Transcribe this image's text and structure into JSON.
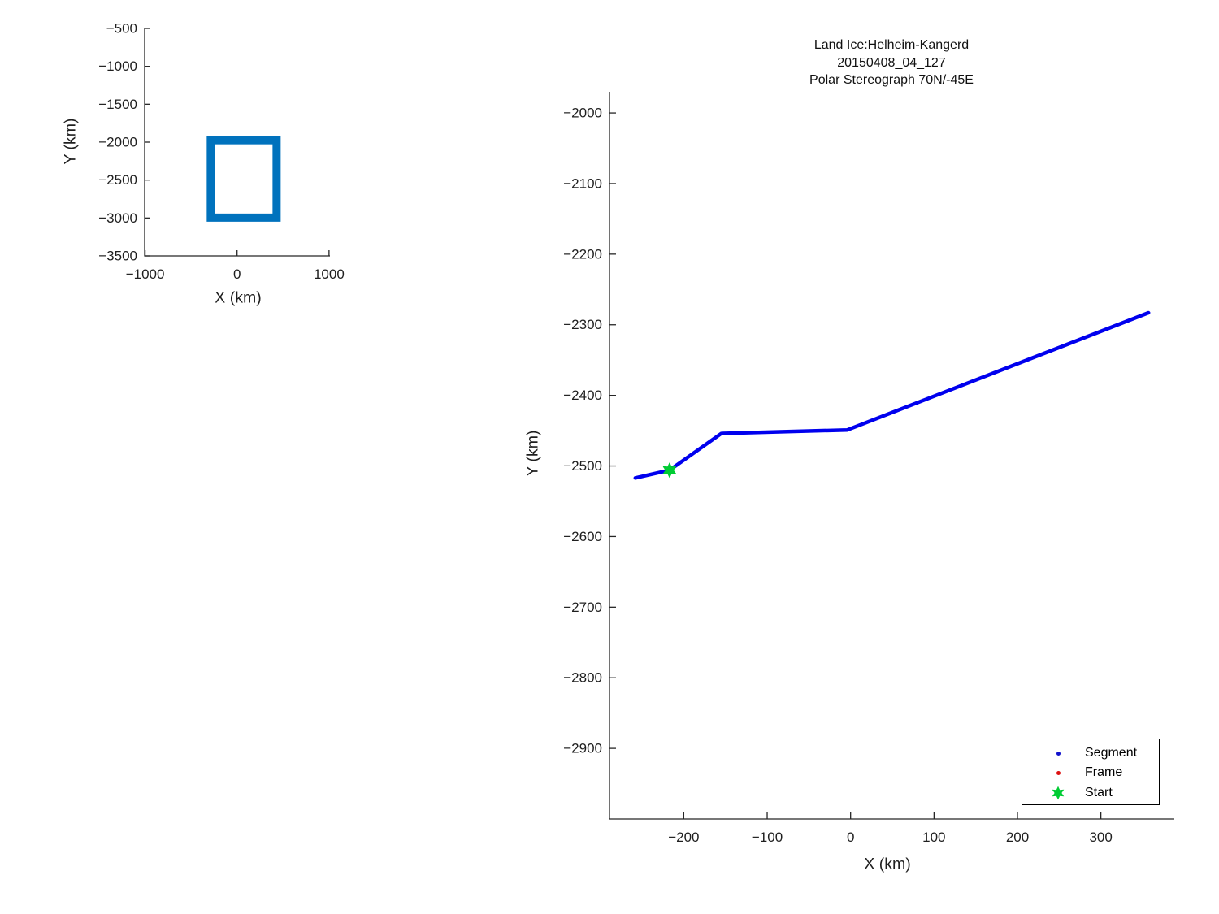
{
  "figure": {
    "background": "#ffffff",
    "axis_color": "#262626",
    "text_color": "#1f1f1f"
  },
  "chart_data": [
    {
      "id": "overview",
      "type": "line",
      "role": "overview locator plot",
      "xlabel": "X (km)",
      "ylabel": "Y (km)",
      "xlim": [
        -1005,
        1010
      ],
      "ylim": [
        -3500,
        -500
      ],
      "x_ticks": [
        -1000,
        0,
        1000
      ],
      "y_ticks": [
        -500,
        -1000,
        -1500,
        -2000,
        -2500,
        -3000,
        -3500
      ],
      "grid": false,
      "series": [
        {
          "name": "coverage-box",
          "type": "rect",
          "x": [
            -286,
            430
          ],
          "y": [
            -2995,
            -1975
          ],
          "color": "#0072BD",
          "line_width": 10
        }
      ]
    },
    {
      "id": "main",
      "type": "line",
      "role": "ground track plot",
      "title_lines": [
        "Land Ice:Helheim-Kangerd",
        "20150408_04_127",
        "Polar Stereograph 70N/-45E"
      ],
      "xlabel": "X (km)",
      "ylabel": "Y (km)",
      "xlim": [
        -289,
        388
      ],
      "ylim": [
        -3000,
        -1970
      ],
      "x_ticks": [
        -200,
        -100,
        0,
        100,
        200,
        300
      ],
      "y_ticks": [
        -2000,
        -2100,
        -2200,
        -2300,
        -2400,
        -2500,
        -2600,
        -2700,
        -2800,
        -2900
      ],
      "grid": false,
      "series": [
        {
          "name": "Segment",
          "type": "polyline",
          "color": "#0000EE",
          "line_width": 4.5,
          "points": [
            [
              -258,
              -2517
            ],
            [
              -217,
              -2506
            ],
            [
              -155,
              -2454
            ],
            [
              -4,
              -2449
            ],
            [
              357,
              -2283
            ]
          ]
        }
      ],
      "start_marker": {
        "label": "Start",
        "x": -217,
        "y": -2506,
        "color": "#00CC33",
        "shape": "hexagram"
      },
      "legend": {
        "position": "bottom-right",
        "items": [
          {
            "label": "Segment",
            "marker": "dot",
            "color": "#1111CC"
          },
          {
            "label": "Frame",
            "marker": "dot",
            "color": "#DD1111"
          },
          {
            "label": "Start",
            "marker": "hexagram",
            "color": "#00CC33"
          }
        ]
      }
    }
  ]
}
